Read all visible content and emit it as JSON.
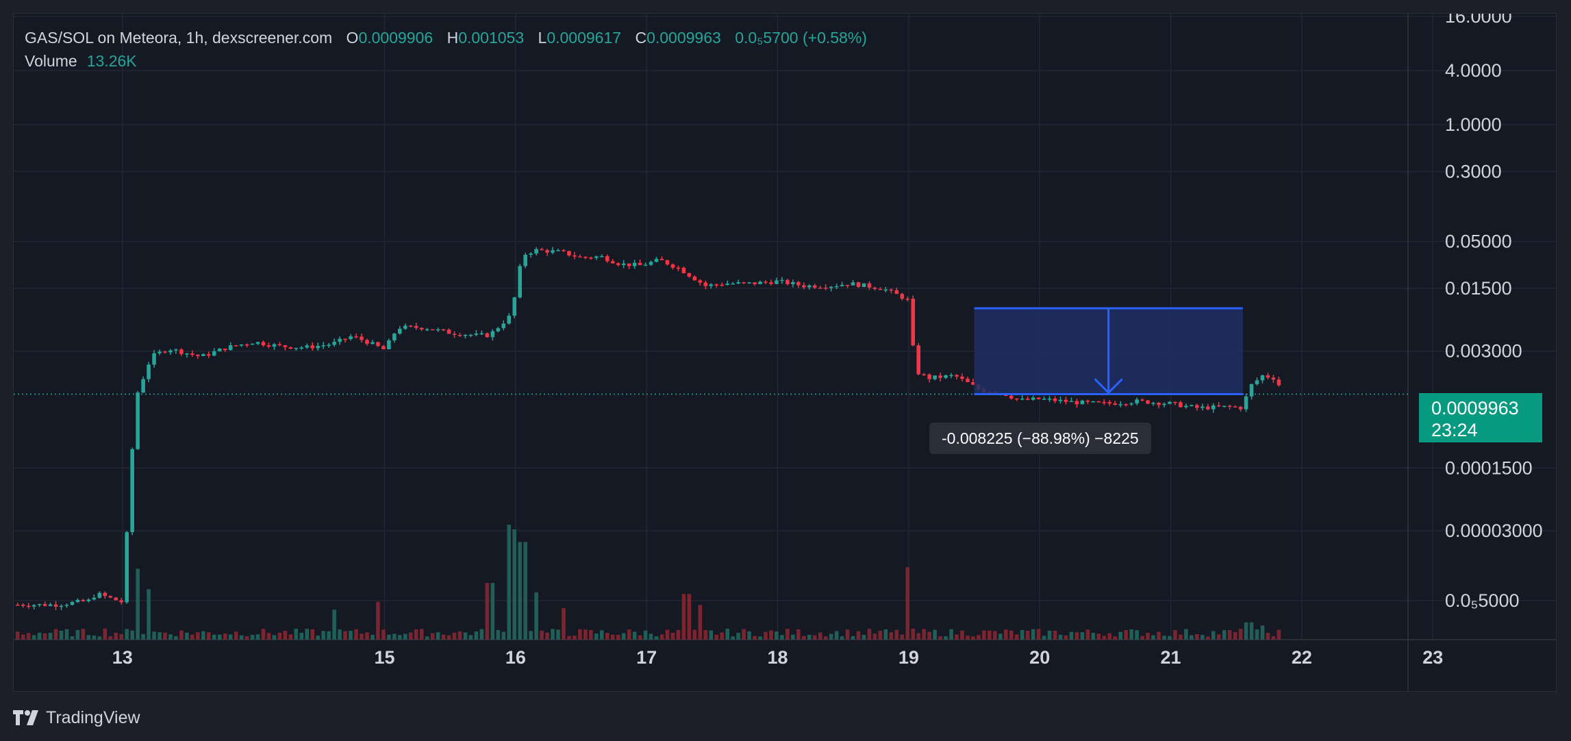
{
  "legend": {
    "symbol": "GAS/SOL on Meteora, 1h, dexscreener.com",
    "o_label": "O",
    "o_value": "0.0009906",
    "h_label": "H",
    "h_value": "0.001053",
    "l_label": "L",
    "l_value": "0.0009617",
    "c_label": "C",
    "c_value": "0.0009963",
    "change": "0.0₅5700 (+0.58%)",
    "volume_label": "Volume",
    "volume_value": "13.26K"
  },
  "price_tag": {
    "price": "0.0009963",
    "countdown": "23:24"
  },
  "measure": {
    "label": "-0.008225 (−88.98%) −8225",
    "from_price": 0.009,
    "to_price": 0.0009963
  },
  "brand": {
    "name": "TradingView",
    "icon": "tradingview-logo-icon"
  },
  "colors": {
    "up": "#26a69a",
    "down": "#f23645",
    "up_tag": "#089981",
    "measure_line": "#2962ff",
    "measure_fill": "#1e2f66"
  },
  "chart_data": {
    "type": "candlestick",
    "title": "GAS/SOL on Meteora, 1h, dexscreener.com",
    "y_scale": "log",
    "ylim": [
      1.6e-06,
      16
    ],
    "y_ticks": [
      {
        "value": 16,
        "label": "16.0000"
      },
      {
        "value": 4,
        "label": "4.0000"
      },
      {
        "value": 1,
        "label": "1.0000"
      },
      {
        "value": 0.3,
        "label": "0.3000"
      },
      {
        "value": 0.05,
        "label": "0.05000"
      },
      {
        "value": 0.015,
        "label": "0.01500"
      },
      {
        "value": 0.003,
        "label": "0.003000"
      },
      {
        "value": 0.00015,
        "label": "0.0001500"
      },
      {
        "value": 3e-05,
        "label": "0.00003000"
      },
      {
        "value": 5e-06,
        "label": "0.0₅5000"
      }
    ],
    "xlim": [
      12.17,
      23.95
    ],
    "x_ticks": [
      {
        "value": 13,
        "label": "13"
      },
      {
        "value": 15,
        "label": "15"
      },
      {
        "value": 16,
        "label": "16"
      },
      {
        "value": 17,
        "label": "17"
      },
      {
        "value": 18,
        "label": "18"
      },
      {
        "value": 19,
        "label": "19"
      },
      {
        "value": 20,
        "label": "20"
      },
      {
        "value": 21,
        "label": "21"
      },
      {
        "value": 22,
        "label": "22"
      },
      {
        "value": 23,
        "label": "23"
      }
    ],
    "last_price": 0.0009963,
    "price_path": [
      [
        12.2,
        4.5e-06
      ],
      [
        12.5,
        4.5e-06
      ],
      [
        12.75,
        5e-06
      ],
      [
        12.8,
        6e-06
      ],
      [
        13.0,
        4.8e-06
      ],
      [
        13.1,
        0.0009
      ],
      [
        13.22,
        0.0026
      ],
      [
        13.35,
        0.0032
      ],
      [
        13.6,
        0.0026
      ],
      [
        13.8,
        0.0033
      ],
      [
        14.0,
        0.0038
      ],
      [
        14.2,
        0.0034
      ],
      [
        14.4,
        0.0033
      ],
      [
        14.6,
        0.0036
      ],
      [
        14.75,
        0.0044
      ],
      [
        14.85,
        0.0039
      ],
      [
        15.0,
        0.0031
      ],
      [
        15.1,
        0.0055
      ],
      [
        15.3,
        0.0055
      ],
      [
        15.5,
        0.0048
      ],
      [
        15.7,
        0.0045
      ],
      [
        15.8,
        0.0045
      ],
      [
        15.95,
        0.0072
      ],
      [
        16.0,
        0.013
      ],
      [
        16.05,
        0.035
      ],
      [
        16.15,
        0.04
      ],
      [
        16.35,
        0.038
      ],
      [
        16.5,
        0.033
      ],
      [
        16.65,
        0.034
      ],
      [
        16.8,
        0.028
      ],
      [
        16.95,
        0.027
      ],
      [
        17.1,
        0.031
      ],
      [
        17.25,
        0.025
      ],
      [
        17.45,
        0.016
      ],
      [
        17.6,
        0.017
      ],
      [
        17.8,
        0.017
      ],
      [
        18.0,
        0.018
      ],
      [
        18.2,
        0.016
      ],
      [
        18.4,
        0.016
      ],
      [
        18.55,
        0.017
      ],
      [
        18.8,
        0.015
      ],
      [
        18.95,
        0.012
      ],
      [
        19.0,
        0.011
      ],
      [
        19.05,
        0.0018
      ],
      [
        19.15,
        0.0015
      ],
      [
        19.35,
        0.0016
      ],
      [
        19.55,
        0.0011
      ],
      [
        19.7,
        0.00105
      ],
      [
        19.85,
        0.00085
      ],
      [
        20.0,
        0.00088
      ],
      [
        20.3,
        0.0008
      ],
      [
        20.5,
        0.00078
      ],
      [
        20.75,
        0.00083
      ],
      [
        21.0,
        0.00078
      ],
      [
        21.2,
        0.0007
      ],
      [
        21.45,
        0.00072
      ],
      [
        21.55,
        0.0007
      ],
      [
        21.6,
        0.0012
      ],
      [
        21.7,
        0.0016
      ],
      [
        21.8,
        0.0015
      ],
      [
        21.86,
        0.0009963
      ]
    ],
    "volume_spikes": [
      [
        12.85,
        0.07
      ],
      [
        13.1,
        0.45
      ],
      [
        13.2,
        0.32
      ],
      [
        14.6,
        0.19
      ],
      [
        14.95,
        0.24
      ],
      [
        15.8,
        0.36
      ],
      [
        15.95,
        0.73
      ],
      [
        16.0,
        0.7
      ],
      [
        16.05,
        0.62
      ],
      [
        16.15,
        0.3
      ],
      [
        16.35,
        0.2
      ],
      [
        17.3,
        0.29
      ],
      [
        17.4,
        0.22
      ],
      [
        19.0,
        0.46
      ],
      [
        21.6,
        0.11
      ],
      [
        21.7,
        0.09
      ]
    ]
  }
}
